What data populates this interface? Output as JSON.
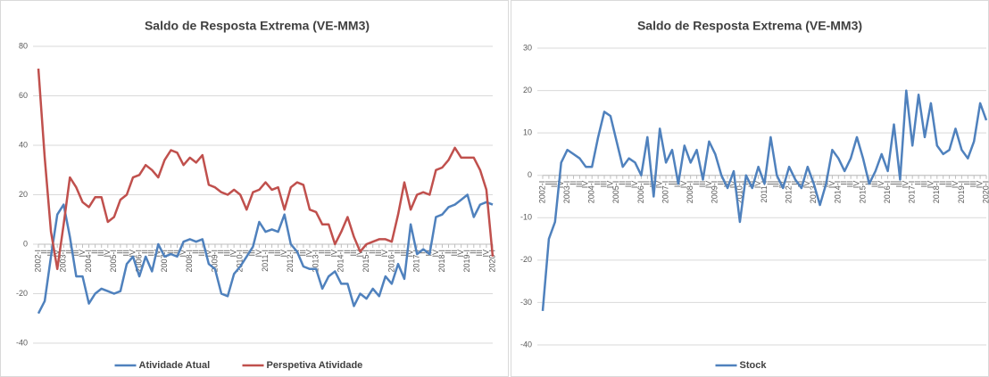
{
  "chart_data": [
    {
      "type": "line",
      "title": "Saldo de Resposta Extrema (VE-MM3)",
      "categories": [
        "2002-I",
        "II",
        "III",
        "IV",
        "2003-I",
        "II",
        "III",
        "IV",
        "2004-I",
        "II",
        "III",
        "IV",
        "2005-I",
        "II",
        "III",
        "IV",
        "2006-I",
        "II",
        "III",
        "IV",
        "2007-I",
        "II",
        "III",
        "IV",
        "2008-I",
        "II",
        "III",
        "IV",
        "2009-I",
        "II",
        "III",
        "IV",
        "2010-I",
        "II",
        "III",
        "IV",
        "2011-I",
        "II",
        "III",
        "IV",
        "2012-I",
        "II",
        "III",
        "IV",
        "2013-I",
        "II",
        "III",
        "IV",
        "2014-I",
        "II",
        "III",
        "IV",
        "2015-I",
        "II",
        "III",
        "IV",
        "2016-I",
        "II",
        "III",
        "IV",
        "2017-I",
        "II",
        "III",
        "IV",
        "2018-I",
        "II",
        "III",
        "IV",
        "2019-I",
        "II",
        "III",
        "IV",
        "2020-I"
      ],
      "series": [
        {
          "name": "Atividade Atual",
          "color": "#4f81bd",
          "values": [
            -28,
            -23,
            -5,
            12,
            16,
            3,
            -13,
            -13,
            -24,
            -20,
            -18,
            -19,
            -20,
            -19,
            -8,
            -5,
            -13,
            -5,
            -11,
            0,
            -5,
            -4,
            -5,
            1,
            2,
            1,
            2,
            -8,
            -10,
            -20,
            -21,
            -12,
            -9,
            -5,
            -1,
            9,
            5,
            6,
            5,
            12,
            0,
            -3,
            -9,
            -10,
            -10,
            -18,
            -13,
            -11,
            -16,
            -16,
            -25,
            -20,
            -22,
            -18,
            -21,
            -13,
            -16,
            -8,
            -14,
            8,
            -4,
            -2,
            -4,
            11,
            12,
            15,
            16,
            18,
            20,
            11,
            16,
            17,
            16
          ]
        },
        {
          "name": "Perspetiva Atividade",
          "color": "#c0504d",
          "values": [
            71,
            35,
            5,
            -10,
            8,
            27,
            23,
            17,
            15,
            19,
            19,
            9,
            11,
            18,
            20,
            27,
            28,
            32,
            30,
            27,
            34,
            38,
            37,
            32,
            35,
            33,
            36,
            24,
            23,
            21,
            20,
            22,
            20,
            14,
            21,
            22,
            25,
            22,
            23,
            14,
            23,
            25,
            24,
            14,
            13,
            8,
            8,
            0,
            5,
            11,
            3,
            -3,
            0,
            1,
            2,
            2,
            1,
            12,
            25,
            14,
            20,
            21,
            20,
            30,
            31,
            34,
            39,
            35,
            35,
            35,
            30,
            22,
            -5
          ]
        }
      ],
      "ylim": [
        -40,
        80
      ],
      "yticks": [
        -40,
        -20,
        0,
        20,
        40,
        60,
        80
      ],
      "grid": true,
      "legend": "bottom"
    },
    {
      "type": "line",
      "title": "Saldo de Resposta Extrema (VE-MM3)",
      "categories": [
        "2002-I",
        "II",
        "III",
        "IV",
        "2003-I",
        "II",
        "III",
        "IV",
        "2004-I",
        "II",
        "III",
        "IV",
        "2005-I",
        "II",
        "III",
        "IV",
        "2006-I",
        "II",
        "III",
        "IV",
        "2007-I",
        "II",
        "III",
        "IV",
        "2008-I",
        "II",
        "III",
        "IV",
        "2009-I",
        "II",
        "III",
        "IV",
        "2010-I",
        "II",
        "III",
        "IV",
        "2011-I",
        "II",
        "III",
        "IV",
        "2012-I",
        "II",
        "III",
        "IV",
        "2013-I",
        "II",
        "III",
        "IV",
        "2014-I",
        "II",
        "III",
        "IV",
        "2015-I",
        "II",
        "III",
        "IV",
        "2016-I",
        "II",
        "III",
        "IV",
        "2017-I",
        "II",
        "III",
        "IV",
        "2018-I",
        "II",
        "III",
        "IV",
        "2019-I",
        "II",
        "III",
        "IV",
        "2020-I"
      ],
      "series": [
        {
          "name": "Stock",
          "color": "#4f81bd",
          "values": [
            -32,
            -15,
            -11,
            3,
            6,
            5,
            4,
            2,
            2,
            9,
            15,
            14,
            8,
            2,
            4,
            3,
            0,
            9,
            -5,
            11,
            3,
            6,
            -2,
            7,
            3,
            6,
            -1,
            8,
            5,
            0,
            -3,
            1,
            -11,
            0,
            -3,
            2,
            -2,
            9,
            0,
            -3,
            2,
            -1,
            -3,
            2,
            -2,
            -7,
            -2,
            6,
            4,
            1,
            4,
            9,
            4,
            -2,
            1,
            5,
            1,
            12,
            -1,
            20,
            7,
            19,
            9,
            17,
            7,
            5,
            6,
            11,
            6,
            4,
            8,
            17,
            13
          ]
        }
      ],
      "ylim": [
        -40,
        30
      ],
      "yticks": [
        -40,
        -30,
        -20,
        -10,
        0,
        10,
        20,
        30
      ],
      "grid": true,
      "legend": "bottom"
    }
  ]
}
